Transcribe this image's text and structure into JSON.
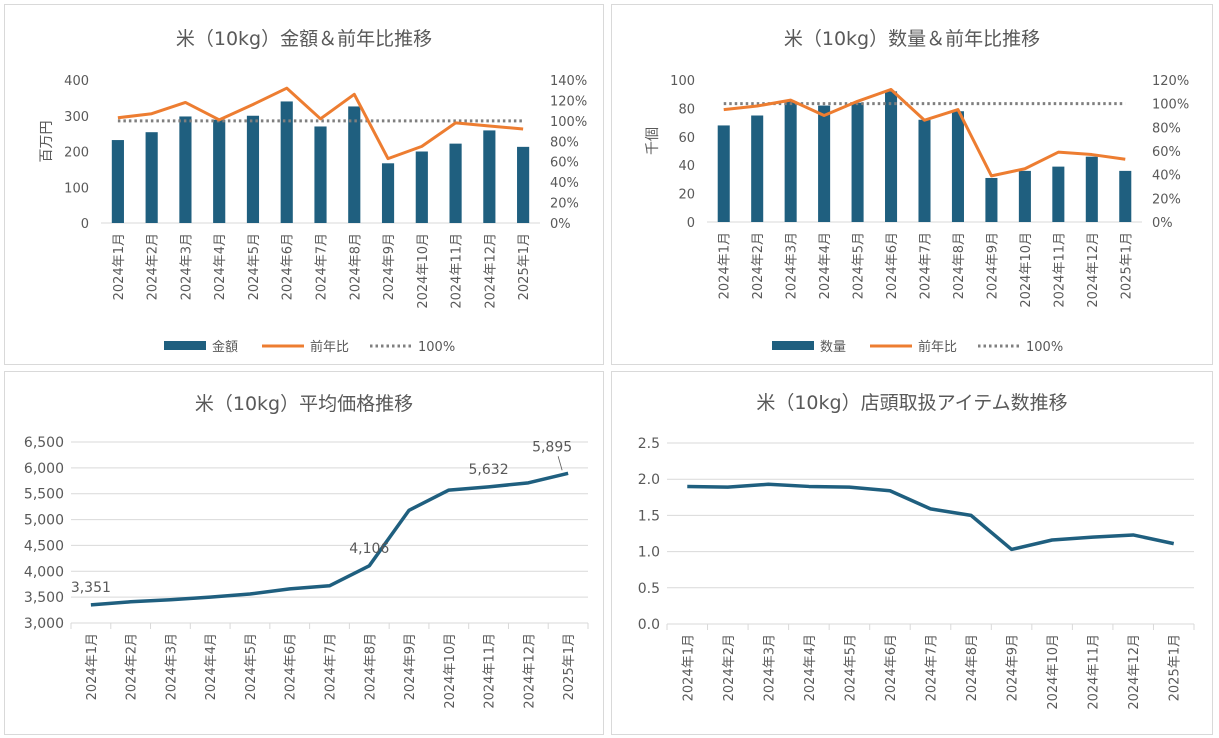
{
  "colors": {
    "bar": "#1f5f7f",
    "line_ratio": "#ed7d31",
    "ref_line": "#7f7f7f",
    "avg_line": "#1f5f7f",
    "grid": "#d9d9d9",
    "text": "#595959"
  },
  "chart_data": [
    {
      "id": "amount",
      "type": "bar+line",
      "title": "米（10kg）金額＆前年比推移",
      "ylabel": "百万円",
      "categories": [
        "2024年1月",
        "2024年2月",
        "2024年3月",
        "2024年4月",
        "2024年5月",
        "2024年6月",
        "2024年7月",
        "2024年8月",
        "2024年9月",
        "2024年10月",
        "2024年11月",
        "2024年12月",
        "2025年1月"
      ],
      "ylim": [
        0,
        400
      ],
      "yticks": [
        "0",
        "100",
        "200",
        "300",
        "400"
      ],
      "y2lim": [
        0,
        140
      ],
      "y2ticks": [
        "0%",
        "20%",
        "40%",
        "60%",
        "80%",
        "100%",
        "120%",
        "140%"
      ],
      "series": [
        {
          "name": "金額",
          "kind": "bar",
          "axis": "left",
          "values": [
            232,
            254,
            298,
            289,
            300,
            340,
            270,
            326,
            167,
            200,
            222,
            259,
            213
          ]
        },
        {
          "name": "前年比",
          "kind": "line",
          "axis": "right",
          "values": [
            103,
            107,
            118,
            101,
            116,
            132,
            102,
            126,
            63,
            75,
            98,
            95,
            92
          ]
        },
        {
          "name": "100%",
          "kind": "dotted",
          "axis": "right",
          "values": [
            100,
            100,
            100,
            100,
            100,
            100,
            100,
            100,
            100,
            100,
            100,
            100,
            100
          ]
        }
      ],
      "legend_placement": "bottom"
    },
    {
      "id": "quantity",
      "type": "bar+line",
      "title": "米（10kg）数量＆前年比推移",
      "ylabel": "千個",
      "categories": [
        "2024年1月",
        "2024年2月",
        "2024年3月",
        "2024年4月",
        "2024年5月",
        "2024年6月",
        "2024年7月",
        "2024年8月",
        "2024年9月",
        "2024年10月",
        "2024年11月",
        "2024年12月",
        "2025年1月"
      ],
      "ylim": [
        0,
        100
      ],
      "yticks": [
        "0",
        "20",
        "40",
        "60",
        "80",
        "100"
      ],
      "y2lim": [
        0,
        120
      ],
      "y2ticks": [
        "0%",
        "20%",
        "40%",
        "60%",
        "80%",
        "100%",
        "120%"
      ],
      "series": [
        {
          "name": "数量",
          "kind": "bar",
          "axis": "left",
          "values": [
            68,
            75,
            85,
            82,
            84,
            92,
            72,
            78,
            31,
            36,
            39,
            46,
            36
          ]
        },
        {
          "name": "前年比",
          "kind": "line",
          "axis": "right",
          "values": [
            95,
            98,
            103,
            90,
            102,
            112,
            86,
            95,
            39,
            45,
            59,
            57,
            53
          ]
        },
        {
          "name": "100%",
          "kind": "dotted",
          "axis": "right",
          "values": [
            100,
            100,
            100,
            100,
            100,
            100,
            100,
            100,
            100,
            100,
            100,
            100,
            100
          ]
        }
      ],
      "legend_placement": "bottom"
    },
    {
      "id": "avgprice",
      "type": "line",
      "title": "米（10kg）平均価格推移",
      "categories": [
        "2024年1月",
        "2024年2月",
        "2024年3月",
        "2024年4月",
        "2024年5月",
        "2024年6月",
        "2024年7月",
        "2024年8月",
        "2024年9月",
        "2024年10月",
        "2024年11月",
        "2024年12月",
        "2025年1月"
      ],
      "ylim": [
        3000,
        6500
      ],
      "yticks": [
        "3,000",
        "3,500",
        "4,000",
        "4,500",
        "5,000",
        "5,500",
        "6,000",
        "6,500"
      ],
      "series": [
        {
          "values": [
            3351,
            3410,
            3450,
            3500,
            3560,
            3660,
            3720,
            4106,
            5180,
            5570,
            5632,
            5710,
            5895
          ]
        }
      ],
      "data_labels": [
        {
          "index": 0,
          "text": "3,351"
        },
        {
          "index": 7,
          "text": "4,106"
        },
        {
          "index": 10,
          "text": "5,632"
        },
        {
          "index": 12,
          "text": "5,895"
        }
      ]
    },
    {
      "id": "items",
      "type": "line",
      "title": "米（10kg）店頭取扱アイテム数推移",
      "categories": [
        "2024年1月",
        "2024年2月",
        "2024年3月",
        "2024年4月",
        "2024年5月",
        "2024年6月",
        "2024年7月",
        "2024年8月",
        "2024年9月",
        "2024年10月",
        "2024年11月",
        "2024年12月",
        "2025年1月"
      ],
      "ylim": [
        0,
        2.5
      ],
      "yticks": [
        "0.0",
        "0.5",
        "1.0",
        "1.5",
        "2.0",
        "2.5"
      ],
      "series": [
        {
          "values": [
            1.9,
            1.89,
            1.93,
            1.9,
            1.89,
            1.84,
            1.59,
            1.5,
            1.03,
            1.16,
            1.2,
            1.23,
            1.11
          ]
        }
      ]
    }
  ]
}
